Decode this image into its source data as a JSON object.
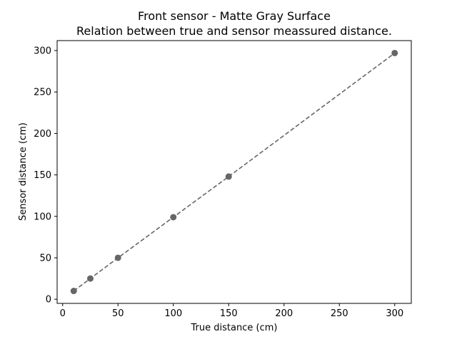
{
  "chart_data": {
    "type": "scatter",
    "title": "Front sensor - Matte Gray Surface",
    "subtitle": "Relation between true and sensor meassured distance.",
    "xlabel": "True distance (cm)",
    "ylabel": "Sensor distance (cm)",
    "xlim": [
      -5,
      315
    ],
    "ylim": [
      -5,
      312
    ],
    "xticks": [
      0,
      50,
      100,
      150,
      200,
      250,
      300
    ],
    "yticks": [
      0,
      50,
      100,
      150,
      200,
      250,
      300
    ],
    "grid": false,
    "series": [
      {
        "x": [
          10,
          25,
          50,
          100,
          150,
          300
        ],
        "y": [
          10,
          25,
          50,
          99,
          148,
          297
        ],
        "marker": "circle",
        "line": "dashed",
        "color": "#666666"
      }
    ]
  }
}
